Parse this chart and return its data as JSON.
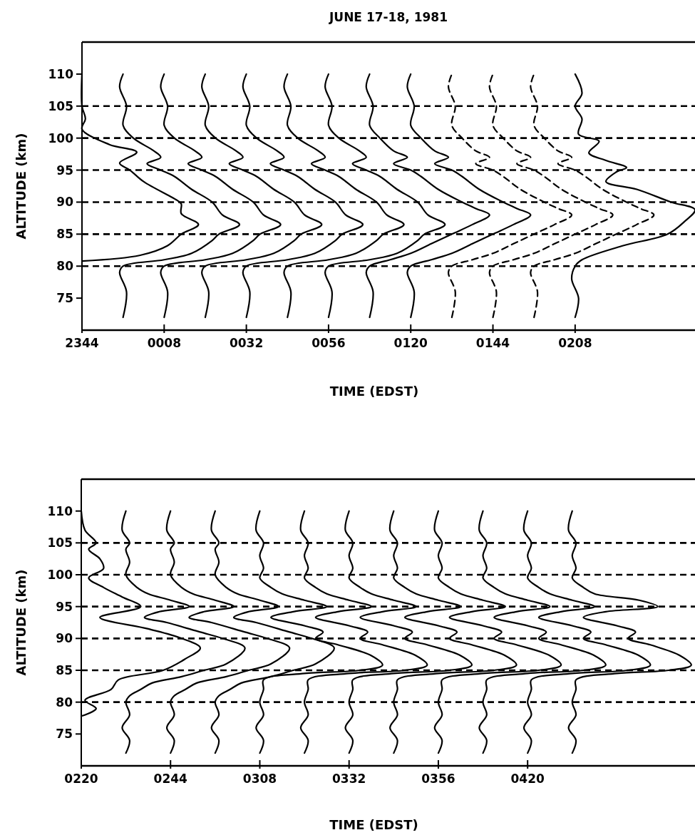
{
  "chart_data": [
    {
      "type": "line",
      "title": "JUNE 17-18, 1981",
      "xlabel": "TIME (EDST)",
      "ylabel": "ALTITUDE (km)",
      "xlim": [
        "1981-06-17T23:44",
        "1981-06-18T02:43"
      ],
      "ylim": [
        70,
        115
      ],
      "xticks": [
        {
          "value": "1981-06-17T23:44",
          "label": "2344"
        },
        {
          "value": "1981-06-18T00:08",
          "label": "0008"
        },
        {
          "value": "1981-06-18T00:32",
          "label": "0032"
        },
        {
          "value": "1981-06-18T00:56",
          "label": "0056"
        },
        {
          "value": "1981-06-18T01:20",
          "label": "0120"
        },
        {
          "value": "1981-06-18T01:44",
          "label": "0144"
        },
        {
          "value": "1981-06-18T02:08",
          "label": "0208"
        }
      ],
      "yticks": [
        75,
        80,
        85,
        90,
        95,
        100,
        105,
        110
      ],
      "ref_lines": [
        {
          "axis": "y",
          "value": 80,
          "line_style": "dashed"
        },
        {
          "axis": "y",
          "value": 85,
          "line_style": "dashed"
        },
        {
          "axis": "y",
          "value": 90,
          "line_style": "dashed"
        },
        {
          "axis": "y",
          "value": 95,
          "line_style": "dashed"
        },
        {
          "axis": "y",
          "value": 100,
          "line_style": "dashed"
        },
        {
          "axis": "y",
          "value": 105,
          "line_style": "dashed"
        }
      ],
      "series": [
        {
          "color": "#000000",
          "line_style": "solid",
          "x": [
            "1981-06-17T23:44",
            "1981-06-18T00:01",
            "1981-06-18T00:09",
            "1981-06-18T00:13",
            "1981-06-18T00:18",
            "1981-06-18T00:13",
            "1981-06-18T00:13",
            "1981-06-18T00:12",
            "1981-06-18T00:02",
            "1981-06-17T23:58",
            "1981-06-17T23:55",
            "1981-06-18T00:00",
            "1981-06-17T23:52",
            "1981-06-17T23:44",
            "1981-06-17T23:45",
            "1981-06-17T23:44",
            "1981-06-17T23:44"
          ],
          "values": [
            80.8,
            81.7,
            83.2,
            85,
            86.5,
            88.2,
            89.7,
            90.2,
            93.2,
            95,
            96.1,
            97.8,
            99,
            101.4,
            103,
            105,
            110
          ]
        },
        {
          "color": "#000000",
          "line_style": "solid",
          "x": [
            "1981-06-17T23:56",
            "1981-06-17T23:57",
            "1981-06-17T23:55",
            "1981-06-17T23:56",
            "1981-06-18T00:08",
            "1981-06-18T00:16",
            "1981-06-18T00:22",
            "1981-06-18T00:24",
            "1981-06-18T00:30",
            "1981-06-18T00:25",
            "1981-06-18T00:22",
            "1981-06-18T00:16",
            "1981-06-18T00:11",
            "1981-06-18T00:07",
            "1981-06-18T00:03",
            "1981-06-18T00:07",
            "1981-06-18T00:05",
            "1981-06-17T23:59",
            "1981-06-17T23:56",
            "1981-06-17T23:57",
            "1981-06-17T23:55",
            "1981-06-17T23:56"
          ],
          "values": [
            72,
            76,
            79,
            80,
            81,
            82,
            84,
            85,
            86.5,
            88,
            90,
            92,
            94,
            95,
            96,
            97,
            98,
            100,
            102,
            105,
            108,
            110
          ]
        },
        {
          "color": "#000000",
          "line_style": "solid",
          "x": [
            "1981-06-18T00:08",
            "1981-06-18T00:09",
            "1981-06-18T00:07",
            "1981-06-18T00:08",
            "1981-06-18T00:20",
            "1981-06-18T00:28",
            "1981-06-18T00:34",
            "1981-06-18T00:36",
            "1981-06-18T00:42",
            "1981-06-18T00:37",
            "1981-06-18T00:34",
            "1981-06-18T00:28",
            "1981-06-18T00:23",
            "1981-06-18T00:19",
            "1981-06-18T00:15",
            "1981-06-18T00:19",
            "1981-06-18T00:17",
            "1981-06-18T00:11",
            "1981-06-18T00:08",
            "1981-06-18T00:09",
            "1981-06-18T00:07",
            "1981-06-18T00:08"
          ],
          "values": [
            72,
            76,
            79,
            80,
            81,
            82,
            84,
            85,
            86.5,
            88,
            90,
            92,
            94,
            95,
            96,
            97,
            98,
            100,
            102,
            105,
            108,
            110
          ]
        },
        {
          "color": "#000000",
          "line_style": "solid",
          "x": [
            "1981-06-18T00:20",
            "1981-06-18T00:21",
            "1981-06-18T00:19",
            "1981-06-18T00:20",
            "1981-06-18T00:32",
            "1981-06-18T00:40",
            "1981-06-18T00:46",
            "1981-06-18T00:48",
            "1981-06-18T00:54",
            "1981-06-18T00:49",
            "1981-06-18T00:46",
            "1981-06-18T00:40",
            "1981-06-18T00:35",
            "1981-06-18T00:31",
            "1981-06-18T00:27",
            "1981-06-18T00:31",
            "1981-06-18T00:29",
            "1981-06-18T00:23",
            "1981-06-18T00:20",
            "1981-06-18T00:21",
            "1981-06-18T00:19",
            "1981-06-18T00:20"
          ],
          "values": [
            72,
            76,
            79,
            80,
            81,
            82,
            84,
            85,
            86.5,
            88,
            90,
            92,
            94,
            95,
            96,
            97,
            98,
            100,
            102,
            105,
            108,
            110
          ]
        },
        {
          "color": "#000000",
          "line_style": "solid",
          "x": [
            "1981-06-18T00:32",
            "1981-06-18T00:33",
            "1981-06-18T00:31",
            "1981-06-18T00:32",
            "1981-06-18T00:44",
            "1981-06-18T00:52",
            "1981-06-18T00:58",
            "1981-06-18T01:00",
            "1981-06-18T01:06",
            "1981-06-18T01:01",
            "1981-06-18T00:58",
            "1981-06-18T00:52",
            "1981-06-18T00:47",
            "1981-06-18T00:43",
            "1981-06-18T00:39",
            "1981-06-18T00:43",
            "1981-06-18T00:41",
            "1981-06-18T00:35",
            "1981-06-18T00:32",
            "1981-06-18T00:33",
            "1981-06-18T00:31",
            "1981-06-18T00:32"
          ],
          "values": [
            72,
            76,
            79,
            80,
            81,
            82,
            84,
            85,
            86.5,
            88,
            90,
            92,
            94,
            95,
            96,
            97,
            98,
            100,
            102,
            105,
            108,
            110
          ]
        },
        {
          "color": "#000000",
          "line_style": "solid",
          "x": [
            "1981-06-18T00:44",
            "1981-06-18T00:45",
            "1981-06-18T00:43",
            "1981-06-18T00:44",
            "1981-06-18T00:56",
            "1981-06-18T01:04",
            "1981-06-18T01:10",
            "1981-06-18T01:12",
            "1981-06-18T01:18",
            "1981-06-18T01:13",
            "1981-06-18T01:10",
            "1981-06-18T01:04",
            "1981-06-18T00:59",
            "1981-06-18T00:55",
            "1981-06-18T00:51",
            "1981-06-18T00:55",
            "1981-06-18T00:53",
            "1981-06-18T00:47",
            "1981-06-18T00:44",
            "1981-06-18T00:45",
            "1981-06-18T00:43",
            "1981-06-18T00:44"
          ],
          "values": [
            72,
            76,
            79,
            80,
            81,
            82,
            84,
            85,
            86.5,
            88,
            90,
            92,
            94,
            95,
            96,
            97,
            98,
            100,
            102,
            105,
            108,
            110
          ]
        },
        {
          "color": "#000000",
          "line_style": "solid",
          "x": [
            "1981-06-18T00:56",
            "1981-06-18T00:57",
            "1981-06-18T00:55",
            "1981-06-18T00:56",
            "1981-06-18T01:08",
            "1981-06-18T01:16",
            "1981-06-18T01:22",
            "1981-06-18T01:24",
            "1981-06-18T01:30",
            "1981-06-18T01:25",
            "1981-06-18T01:22",
            "1981-06-18T01:16",
            "1981-06-18T01:11",
            "1981-06-18T01:07",
            "1981-06-18T01:03",
            "1981-06-18T01:07",
            "1981-06-18T01:05",
            "1981-06-18T00:59",
            "1981-06-18T00:56",
            "1981-06-18T00:57",
            "1981-06-18T00:55",
            "1981-06-18T00:56"
          ],
          "values": [
            72,
            76,
            79,
            80,
            81,
            82,
            84,
            85,
            86.5,
            88,
            90,
            92,
            94,
            95,
            96,
            97,
            98,
            100,
            102,
            105,
            108,
            110
          ]
        },
        {
          "color": "#000000",
          "line_style": "solid",
          "x": [
            "1981-06-18T01:08",
            "1981-06-18T01:09",
            "1981-06-18T01:07",
            "1981-06-18T01:08",
            "1981-06-18T01:14",
            "1981-06-18T01:20",
            "1981-06-18T01:26",
            "1981-06-18T01:32",
            "1981-06-18T01:38",
            "1981-06-18T01:43",
            "1981-06-18T01:39",
            "1981-06-18T01:35",
            "1981-06-18T01:28",
            "1981-06-18T01:23",
            "1981-06-18T01:20",
            "1981-06-18T01:15",
            "1981-06-18T01:19",
            "1981-06-18T01:15",
            "1981-06-18T01:11",
            "1981-06-18T01:08",
            "1981-06-18T01:09",
            "1981-06-18T01:07",
            "1981-06-18T01:08"
          ],
          "values": [
            72,
            76,
            79,
            80,
            81,
            82,
            83.5,
            85,
            86.5,
            88,
            89,
            90,
            92,
            94,
            95,
            96,
            97,
            98,
            100,
            102,
            105,
            108,
            110
          ]
        },
        {
          "color": "#000000",
          "line_style": "solid",
          "x": [
            "1981-06-18T01:20",
            "1981-06-18T01:21",
            "1981-06-18T01:19",
            "1981-06-18T01:20",
            "1981-06-18T01:26",
            "1981-06-18T01:32",
            "1981-06-18T01:38",
            "1981-06-18T01:44",
            "1981-06-18T01:50",
            "1981-06-18T01:55",
            "1981-06-18T01:51",
            "1981-06-18T01:47",
            "1981-06-18T01:40",
            "1981-06-18T01:35",
            "1981-06-18T01:32",
            "1981-06-18T01:27",
            "1981-06-18T01:31",
            "1981-06-18T01:27",
            "1981-06-18T01:23",
            "1981-06-18T01:20",
            "1981-06-18T01:21",
            "1981-06-18T01:19",
            "1981-06-18T01:20"
          ],
          "values": [
            72,
            76,
            79,
            80,
            81,
            82,
            83.5,
            85,
            86.5,
            88,
            89,
            90,
            92,
            94,
            95,
            96,
            97,
            98,
            100,
            102,
            105,
            108,
            110
          ]
        },
        {
          "color": "#000000",
          "line_style": "dashed",
          "x": [
            "1981-06-18T01:32",
            "1981-06-18T01:33",
            "1981-06-18T01:31",
            "1981-06-18T01:32",
            "1981-06-18T01:38",
            "1981-06-18T01:44",
            "1981-06-18T01:50",
            "1981-06-18T01:56",
            "1981-06-18T02:02",
            "1981-06-18T02:07",
            "1981-06-18T02:03",
            "1981-06-18T01:59",
            "1981-06-18T01:52",
            "1981-06-18T01:47",
            "1981-06-18T01:44",
            "1981-06-18T01:39",
            "1981-06-18T01:43",
            "1981-06-18T01:39",
            "1981-06-18T01:35",
            "1981-06-18T01:32",
            "1981-06-18T01:33",
            "1981-06-18T01:31",
            "1981-06-18T01:32"
          ],
          "values": [
            72,
            76,
            79,
            80,
            81,
            82,
            83.5,
            85,
            86.5,
            88,
            89,
            90,
            92,
            94,
            95,
            96,
            97,
            98,
            100,
            102,
            105,
            108,
            110
          ]
        },
        {
          "color": "#000000",
          "line_style": "dashed",
          "x": [
            "1981-06-18T01:44",
            "1981-06-18T01:45",
            "1981-06-18T01:43",
            "1981-06-18T01:44",
            "1981-06-18T01:50",
            "1981-06-18T01:56",
            "1981-06-18T02:02",
            "1981-06-18T02:08",
            "1981-06-18T02:14",
            "1981-06-18T02:19",
            "1981-06-18T02:15",
            "1981-06-18T02:11",
            "1981-06-18T02:04",
            "1981-06-18T01:59",
            "1981-06-18T01:56",
            "1981-06-18T01:51",
            "1981-06-18T01:55",
            "1981-06-18T01:51",
            "1981-06-18T01:47",
            "1981-06-18T01:44",
            "1981-06-18T01:45",
            "1981-06-18T01:43",
            "1981-06-18T01:44"
          ],
          "values": [
            72,
            76,
            79,
            80,
            81,
            82,
            83.5,
            85,
            86.5,
            88,
            89,
            90,
            92,
            94,
            95,
            96,
            97,
            98,
            100,
            102,
            105,
            108,
            110
          ]
        },
        {
          "color": "#000000",
          "line_style": "dashed",
          "x": [
            "1981-06-18T01:56",
            "1981-06-18T01:57",
            "1981-06-18T01:55",
            "1981-06-18T01:56",
            "1981-06-18T02:02",
            "1981-06-18T02:08",
            "1981-06-18T02:14",
            "1981-06-18T02:20",
            "1981-06-18T02:26",
            "1981-06-18T02:31",
            "1981-06-18T02:27",
            "1981-06-18T02:23",
            "1981-06-18T02:16",
            "1981-06-18T02:11",
            "1981-06-18T02:08",
            "1981-06-18T02:03",
            "1981-06-18T02:07",
            "1981-06-18T02:03",
            "1981-06-18T01:59",
            "1981-06-18T01:56",
            "1981-06-18T01:57",
            "1981-06-18T01:55",
            "1981-06-18T01:56"
          ],
          "values": [
            72,
            76,
            79,
            80,
            81,
            82,
            83.5,
            85,
            86.5,
            88,
            89,
            90,
            92,
            94,
            95,
            96,
            97,
            98,
            100,
            102,
            105,
            108,
            110
          ]
        },
        {
          "color": "#000000",
          "line_style": "solid",
          "x": [
            "1981-06-18T02:08",
            "1981-06-18T02:09",
            "1981-06-18T02:07",
            "1981-06-18T02:08",
            "1981-06-18T02:10",
            "1981-06-18T02:22",
            "1981-06-18T02:35",
            "1981-06-18T02:40",
            "1981-06-18T02:43",
            "1981-06-18T02:36",
            "1981-06-18T02:26",
            "1981-06-18T02:17",
            "1981-06-18T02:20",
            "1981-06-18T02:23",
            "1981-06-18T02:17",
            "1981-06-18T02:12",
            "1981-06-18T02:15",
            "1981-06-18T02:09",
            "1981-06-18T02:10",
            "1981-06-18T02:08",
            "1981-06-18T02:10",
            "1981-06-18T02:08"
          ],
          "values": [
            72,
            75,
            78,
            80,
            81,
            83.2,
            85,
            87,
            88.8,
            90,
            92,
            93.2,
            94.7,
            95.4,
            96.5,
            97.7,
            99.5,
            100.6,
            103,
            105,
            107,
            110
          ]
        }
      ]
    },
    {
      "type": "line",
      "xlabel": "TIME (EDST)",
      "ylabel": "ALTITUDE (km)",
      "xlim": [
        "1981-06-18T02:20",
        "1981-06-18T05:05"
      ],
      "ylim": [
        70,
        115
      ],
      "xticks": [
        {
          "value": "1981-06-18T02:20",
          "label": "0220"
        },
        {
          "value": "1981-06-18T02:44",
          "label": "0244"
        },
        {
          "value": "1981-06-18T03:08",
          "label": "0308"
        },
        {
          "value": "1981-06-18T03:32",
          "label": "0332"
        },
        {
          "value": "1981-06-18T03:56",
          "label": "0356"
        },
        {
          "value": "1981-06-18T04:20",
          "label": "0420"
        }
      ],
      "yticks": [
        75,
        80,
        85,
        90,
        95,
        100,
        105,
        110
      ],
      "ref_lines": [
        {
          "axis": "y",
          "value": 80,
          "line_style": "dashed"
        },
        {
          "axis": "y",
          "value": 85,
          "line_style": "dashed"
        },
        {
          "axis": "y",
          "value": 90,
          "line_style": "dashed"
        },
        {
          "axis": "y",
          "value": 95,
          "line_style": "dashed"
        },
        {
          "axis": "y",
          "value": 100,
          "line_style": "dashed"
        },
        {
          "axis": "y",
          "value": 105,
          "line_style": "dashed"
        }
      ],
      "series": [
        {
          "color": "#000000",
          "line_style": "solid",
          "x": [
            "1981-06-18T02:20",
            "1981-06-18T02:24",
            "1981-06-18T02:21",
            "1981-06-18T02:28",
            "1981-06-18T02:30",
            "1981-06-18T02:42",
            "1981-06-18T02:48",
            "1981-06-18T02:52",
            "1981-06-18T02:47",
            "1981-06-18T02:38",
            "1981-06-18T02:25",
            "1981-06-18T02:36",
            "1981-06-18T02:31",
            "1981-06-18T02:26",
            "1981-06-18T02:22",
            "1981-06-18T02:26",
            "1981-06-18T02:25",
            "1981-06-18T02:22",
            "1981-06-18T02:24",
            "1981-06-18T02:21",
            "1981-06-18T02:20"
          ],
          "values": [
            77.8,
            79,
            80.3,
            82,
            83.5,
            85,
            86.8,
            88.5,
            90,
            91.5,
            93.3,
            95,
            96.5,
            98,
            99.5,
            101,
            102.5,
            104,
            105,
            107,
            110
          ]
        },
        {
          "color": "#000000",
          "line_style": "solid",
          "x": [
            "1981-06-18T02:32",
            "1981-06-18T02:33",
            "1981-06-18T02:31",
            "1981-06-18T02:33",
            "1981-06-18T02:32",
            "1981-06-18T02:33",
            "1981-06-18T02:36",
            "1981-06-18T02:39",
            "1981-06-18T02:47",
            "1981-06-18T02:53",
            "1981-06-18T02:59",
            "1981-06-18T03:04",
            "1981-06-18T02:58",
            "1981-06-18T02:52",
            "1981-06-18T02:43",
            "1981-06-18T02:37",
            "1981-06-18T02:41",
            "1981-06-18T02:49",
            "1981-06-18T02:44",
            "1981-06-18T02:38",
            "1981-06-18T02:35",
            "1981-06-18T02:32",
            "1981-06-18T02:33",
            "1981-06-18T02:32",
            "1981-06-18T02:33",
            "1981-06-18T02:31",
            "1981-06-18T02:32"
          ],
          "values": [
            72,
            74,
            76,
            78,
            80,
            81,
            82,
            83,
            84,
            85,
            86,
            88.5,
            90,
            91,
            92.5,
            93.3,
            94.2,
            95,
            96,
            97,
            98,
            100,
            102,
            104,
            105,
            107,
            110
          ]
        },
        {
          "color": "#000000",
          "line_style": "solid",
          "x": [
            "1981-06-18T02:44",
            "1981-06-18T02:45",
            "1981-06-18T02:43",
            "1981-06-18T02:45",
            "1981-06-18T02:44",
            "1981-06-18T02:45",
            "1981-06-18T02:48",
            "1981-06-18T02:51",
            "1981-06-18T02:59",
            "1981-06-18T03:05",
            "1981-06-18T03:11",
            "1981-06-18T03:16",
            "1981-06-18T03:10",
            "1981-06-18T03:04",
            "1981-06-18T02:55",
            "1981-06-18T02:49",
            "1981-06-18T02:53",
            "1981-06-18T03:01",
            "1981-06-18T02:56",
            "1981-06-18T02:50",
            "1981-06-18T02:47",
            "1981-06-18T02:44",
            "1981-06-18T02:45",
            "1981-06-18T02:44",
            "1981-06-18T02:45",
            "1981-06-18T02:43",
            "1981-06-18T02:44"
          ],
          "values": [
            72,
            74,
            76,
            78,
            80,
            81,
            82,
            83,
            84,
            85,
            86,
            88.5,
            90,
            91,
            92.5,
            93.3,
            94.2,
            95,
            96,
            97,
            98,
            100,
            102,
            104,
            105,
            107,
            110
          ]
        },
        {
          "color": "#000000",
          "line_style": "solid",
          "x": [
            "1981-06-18T02:56",
            "1981-06-18T02:57",
            "1981-06-18T02:55",
            "1981-06-18T02:57",
            "1981-06-18T02:56",
            "1981-06-18T02:57",
            "1981-06-18T03:00",
            "1981-06-18T03:03",
            "1981-06-18T03:11",
            "1981-06-18T03:17",
            "1981-06-18T03:23",
            "1981-06-18T03:28",
            "1981-06-18T03:22",
            "1981-06-18T03:16",
            "1981-06-18T03:07",
            "1981-06-18T03:01",
            "1981-06-18T03:05",
            "1981-06-18T03:13",
            "1981-06-18T03:08",
            "1981-06-18T03:02",
            "1981-06-18T02:59",
            "1981-06-18T02:56",
            "1981-06-18T02:57",
            "1981-06-18T02:56",
            "1981-06-18T02:57",
            "1981-06-18T02:55",
            "1981-06-18T02:56"
          ],
          "values": [
            72,
            74,
            76,
            78,
            80,
            81,
            82,
            83,
            84,
            85,
            86,
            88.5,
            90,
            91,
            92.5,
            93.3,
            94.2,
            95,
            96,
            97,
            98,
            100,
            102,
            104,
            105,
            107,
            110
          ]
        },
        {
          "color": "#000000",
          "line_style": "solid",
          "x": [
            "1981-06-18T03:08",
            "1981-06-18T03:09",
            "1981-06-18T03:07",
            "1981-06-18T03:09",
            "1981-06-18T03:08",
            "1981-06-18T03:09",
            "1981-06-18T03:09",
            "1981-06-18T03:20",
            "1981-06-18T03:35",
            "1981-06-18T03:41",
            "1981-06-18T03:38",
            "1981-06-18T03:29",
            "1981-06-18T03:23",
            "1981-06-18T03:25",
            "1981-06-18T03:20",
            "1981-06-18T03:11",
            "1981-06-18T03:17",
            "1981-06-18T03:26",
            "1981-06-18T03:20",
            "1981-06-18T03:14",
            "1981-06-18T03:11",
            "1981-06-18T03:08",
            "1981-06-18T03:09",
            "1981-06-18T03:08",
            "1981-06-18T03:09",
            "1981-06-18T03:07",
            "1981-06-18T03:08"
          ],
          "values": [
            72,
            74,
            76,
            78,
            80,
            82,
            83.5,
            84.5,
            85,
            85.8,
            87.3,
            89,
            90,
            91,
            92,
            93.3,
            94.2,
            95,
            96,
            97,
            98,
            99.5,
            101,
            103,
            105,
            107,
            110
          ]
        },
        {
          "color": "#000000",
          "line_style": "solid",
          "x": [
            "1981-06-18T03:20",
            "1981-06-18T03:21",
            "1981-06-18T03:19",
            "1981-06-18T03:21",
            "1981-06-18T03:20",
            "1981-06-18T03:21",
            "1981-06-18T03:21",
            "1981-06-18T03:32",
            "1981-06-18T03:47",
            "1981-06-18T03:53",
            "1981-06-18T03:50",
            "1981-06-18T03:41",
            "1981-06-18T03:35",
            "1981-06-18T03:37",
            "1981-06-18T03:32",
            "1981-06-18T03:23",
            "1981-06-18T03:29",
            "1981-06-18T03:38",
            "1981-06-18T03:32",
            "1981-06-18T03:26",
            "1981-06-18T03:23",
            "1981-06-18T03:20",
            "1981-06-18T03:21",
            "1981-06-18T03:20",
            "1981-06-18T03:21",
            "1981-06-18T03:19",
            "1981-06-18T03:20"
          ],
          "values": [
            72,
            74,
            76,
            78,
            80,
            82,
            83.5,
            84.5,
            85,
            85.8,
            87.3,
            89,
            90,
            91,
            92,
            93.3,
            94.2,
            95,
            96,
            97,
            98,
            99.5,
            101,
            103,
            105,
            107,
            110
          ]
        },
        {
          "color": "#000000",
          "line_style": "solid",
          "x": [
            "1981-06-18T03:32",
            "1981-06-18T03:33",
            "1981-06-18T03:31",
            "1981-06-18T03:33",
            "1981-06-18T03:32",
            "1981-06-18T03:33",
            "1981-06-18T03:33",
            "1981-06-18T03:44",
            "1981-06-18T03:59",
            "1981-06-18T04:05",
            "1981-06-18T04:02",
            "1981-06-18T03:53",
            "1981-06-18T03:47",
            "1981-06-18T03:49",
            "1981-06-18T03:44",
            "1981-06-18T03:35",
            "1981-06-18T03:41",
            "1981-06-18T03:50",
            "1981-06-18T03:44",
            "1981-06-18T03:38",
            "1981-06-18T03:35",
            "1981-06-18T03:32",
            "1981-06-18T03:33",
            "1981-06-18T03:32",
            "1981-06-18T03:33",
            "1981-06-18T03:31",
            "1981-06-18T03:32"
          ],
          "values": [
            72,
            74,
            76,
            78,
            80,
            82,
            83.5,
            84.5,
            85,
            85.8,
            87.3,
            89,
            90,
            91,
            92,
            93.3,
            94.2,
            95,
            96,
            97,
            98,
            99.5,
            101,
            103,
            105,
            107,
            110
          ]
        },
        {
          "color": "#000000",
          "line_style": "solid",
          "x": [
            "1981-06-18T03:44",
            "1981-06-18T03:45",
            "1981-06-18T03:43",
            "1981-06-18T03:45",
            "1981-06-18T03:44",
            "1981-06-18T03:45",
            "1981-06-18T03:45",
            "1981-06-18T03:56",
            "1981-06-18T04:11",
            "1981-06-18T04:17",
            "1981-06-18T04:14",
            "1981-06-18T04:05",
            "1981-06-18T03:59",
            "1981-06-18T04:01",
            "1981-06-18T03:56",
            "1981-06-18T03:47",
            "1981-06-18T03:53",
            "1981-06-18T04:02",
            "1981-06-18T03:56",
            "1981-06-18T03:50",
            "1981-06-18T03:47",
            "1981-06-18T03:44",
            "1981-06-18T03:45",
            "1981-06-18T03:44",
            "1981-06-18T03:45",
            "1981-06-18T03:43",
            "1981-06-18T03:44"
          ],
          "values": [
            72,
            74,
            76,
            78,
            80,
            82,
            83.5,
            84.5,
            85,
            85.8,
            87.3,
            89,
            90,
            91,
            92,
            93.3,
            94.2,
            95,
            96,
            97,
            98,
            99.5,
            101,
            103,
            105,
            107,
            110
          ]
        },
        {
          "color": "#000000",
          "line_style": "solid",
          "x": [
            "1981-06-18T03:56",
            "1981-06-18T03:57",
            "1981-06-18T03:55",
            "1981-06-18T03:57",
            "1981-06-18T03:56",
            "1981-06-18T03:57",
            "1981-06-18T03:57",
            "1981-06-18T04:08",
            "1981-06-18T04:23",
            "1981-06-18T04:29",
            "1981-06-18T04:26",
            "1981-06-18T04:17",
            "1981-06-18T04:11",
            "1981-06-18T04:13",
            "1981-06-18T04:08",
            "1981-06-18T03:59",
            "1981-06-18T04:05",
            "1981-06-18T04:14",
            "1981-06-18T04:08",
            "1981-06-18T04:02",
            "1981-06-18T03:59",
            "1981-06-18T03:56",
            "1981-06-18T03:57",
            "1981-06-18T03:56",
            "1981-06-18T03:57",
            "1981-06-18T03:55",
            "1981-06-18T03:56"
          ],
          "values": [
            72,
            74,
            76,
            78,
            80,
            82,
            83.5,
            84.5,
            85,
            85.8,
            87.3,
            89,
            90,
            91,
            92,
            93.3,
            94.2,
            95,
            96,
            97,
            98,
            99.5,
            101,
            103,
            105,
            107,
            110
          ]
        },
        {
          "color": "#000000",
          "line_style": "solid",
          "x": [
            "1981-06-18T04:08",
            "1981-06-18T04:09",
            "1981-06-18T04:07",
            "1981-06-18T04:09",
            "1981-06-18T04:08",
            "1981-06-18T04:09",
            "1981-06-18T04:09",
            "1981-06-18T04:20",
            "1981-06-18T04:35",
            "1981-06-18T04:41",
            "1981-06-18T04:38",
            "1981-06-18T04:29",
            "1981-06-18T04:23",
            "1981-06-18T04:25",
            "1981-06-18T04:20",
            "1981-06-18T04:11",
            "1981-06-18T04:17",
            "1981-06-18T04:26",
            "1981-06-18T04:20",
            "1981-06-18T04:14",
            "1981-06-18T04:11",
            "1981-06-18T04:08",
            "1981-06-18T04:09",
            "1981-06-18T04:08",
            "1981-06-18T04:09",
            "1981-06-18T04:07",
            "1981-06-18T04:08"
          ],
          "values": [
            72,
            74,
            76,
            78,
            80,
            82,
            83.5,
            84.5,
            85,
            85.8,
            87.3,
            89,
            90,
            91,
            92,
            93.3,
            94.2,
            95,
            96,
            97,
            98,
            99.5,
            101,
            103,
            105,
            107,
            110
          ]
        },
        {
          "color": "#000000",
          "line_style": "solid",
          "x": [
            "1981-06-18T04:20",
            "1981-06-18T04:21",
            "1981-06-18T04:19",
            "1981-06-18T04:21",
            "1981-06-18T04:20",
            "1981-06-18T04:21",
            "1981-06-18T04:21",
            "1981-06-18T04:32",
            "1981-06-18T04:47",
            "1981-06-18T04:53",
            "1981-06-18T04:50",
            "1981-06-18T04:41",
            "1981-06-18T04:35",
            "1981-06-18T04:37",
            "1981-06-18T04:32",
            "1981-06-18T04:23",
            "1981-06-18T04:29",
            "1981-06-18T04:38",
            "1981-06-18T04:32",
            "1981-06-18T04:26",
            "1981-06-18T04:23",
            "1981-06-18T04:20",
            "1981-06-18T04:21",
            "1981-06-18T04:20",
            "1981-06-18T04:21",
            "1981-06-18T04:19",
            "1981-06-18T04:20"
          ],
          "values": [
            72,
            74,
            76,
            78,
            80,
            82,
            83.5,
            84.5,
            85,
            85.8,
            87.3,
            89,
            90,
            91,
            92,
            93.3,
            94.2,
            95,
            96,
            97,
            98,
            99.5,
            101,
            103,
            105,
            107,
            110
          ]
        },
        {
          "color": "#000000",
          "line_style": "solid",
          "x": [
            "1981-06-18T04:32",
            "1981-06-18T04:33",
            "1981-06-18T04:31",
            "1981-06-18T04:33",
            "1981-06-18T04:32",
            "1981-06-18T04:33",
            "1981-06-18T04:33",
            "1981-06-18T04:44",
            "1981-06-18T04:58",
            "1981-06-18T05:04",
            "1981-06-18T05:01",
            "1981-06-18T04:53",
            "1981-06-18T04:47",
            "1981-06-18T04:49",
            "1981-06-18T04:44",
            "1981-06-18T04:35",
            "1981-06-18T04:41",
            "1981-06-18T04:55",
            "1981-06-18T04:50",
            "1981-06-18T04:38",
            "1981-06-18T04:35",
            "1981-06-18T04:32",
            "1981-06-18T04:33",
            "1981-06-18T04:32",
            "1981-06-18T04:33",
            "1981-06-18T04:31",
            "1981-06-18T04:32"
          ],
          "values": [
            72,
            74,
            76,
            78,
            80,
            82,
            83.5,
            84.5,
            85,
            85.8,
            87.3,
            89,
            90,
            91,
            92,
            93.3,
            94.2,
            95,
            96,
            97,
            98,
            99.5,
            101,
            103,
            105,
            107,
            110
          ]
        }
      ]
    }
  ]
}
